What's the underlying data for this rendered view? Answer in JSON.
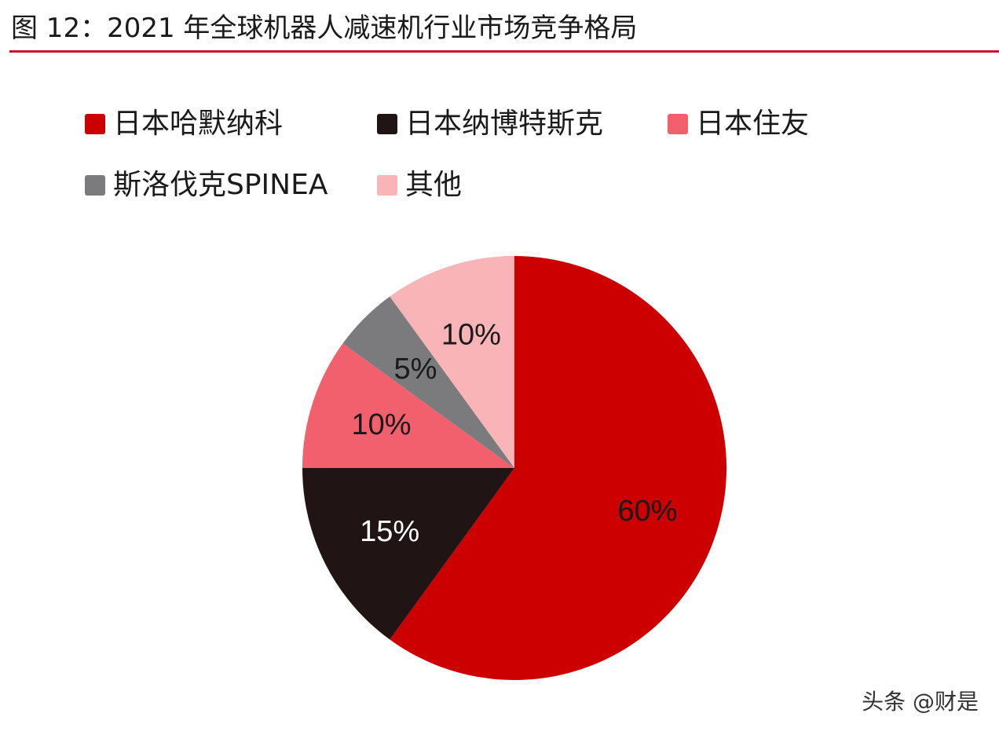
{
  "figure_title": "图 12：2021 年全球机器人减速机行业市场竞争格局",
  "watermark": "头条 @财是",
  "chart_data": {
    "type": "pie",
    "title": "",
    "slices": [
      {
        "name": "日本哈默纳科",
        "value": 60,
        "label": "60%",
        "color": "#cc0000",
        "label_color": "#1a1a1a"
      },
      {
        "name": "日本纳博特斯克",
        "value": 15,
        "label": "15%",
        "color": "#201414",
        "label_color": "#ffffff"
      },
      {
        "name": "日本住友",
        "value": 10,
        "label": "10%",
        "color": "#f2606e",
        "label_color": "#1a1a1a"
      },
      {
        "name": "斯洛伐克SPINEA",
        "value": 5,
        "label": "5%",
        "color": "#7b7b7d",
        "label_color": "#1a1a1a"
      },
      {
        "name": "其他",
        "value": 10,
        "label": "10%",
        "color": "#f9b4b7",
        "label_color": "#1a1a1a"
      }
    ],
    "start_angle": "12 o'clock",
    "direction": "clockwise",
    "legend_position": "top"
  }
}
